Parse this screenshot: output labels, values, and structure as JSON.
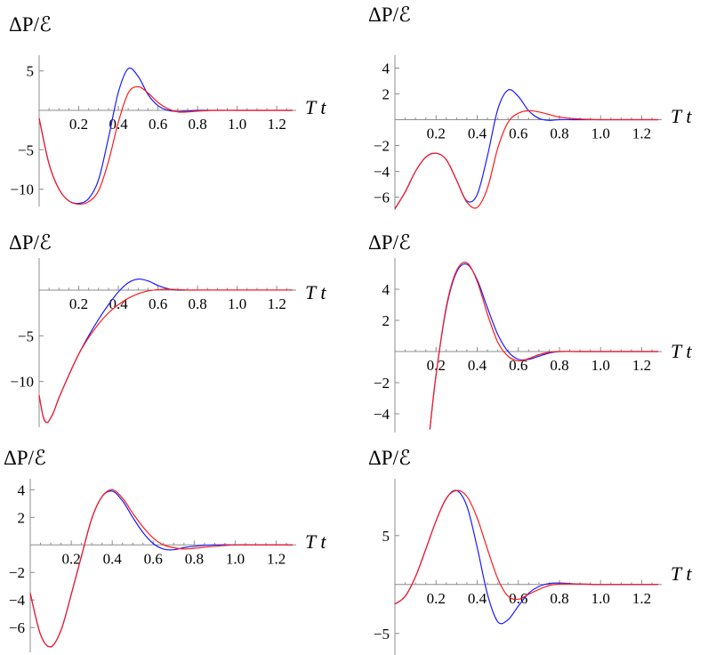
{
  "series_colors": {
    "blue": "#1a1aff",
    "red": "#ff1a1a"
  },
  "chart_data": [
    {
      "type": "line",
      "ylabel": "ΔP/ℰ",
      "xlabel": "T t",
      "xlim": [
        0,
        1.28
      ],
      "ylim": [
        -12.2,
        7
      ],
      "x_ticks": [
        "0.2",
        "0.4",
        "0.6",
        "0.8",
        "1.0",
        "1.2"
      ],
      "y_ticks": [
        "5",
        "−5",
        "−10"
      ],
      "series": [
        {
          "color": "#1a1aff",
          "x": [
            0,
            0.05,
            0.1,
            0.15,
            0.2,
            0.25,
            0.3,
            0.35,
            0.4,
            0.45,
            0.5,
            0.55,
            0.6,
            0.65,
            0.7,
            0.75,
            0.8,
            0.9,
            1.0,
            1.1,
            1.28
          ],
          "y": [
            -1.0,
            -6.8,
            -10.0,
            -11.5,
            -11.8,
            -11.2,
            -8.8,
            -3.5,
            2.3,
            5.3,
            4.3,
            2.0,
            0.6,
            0.0,
            -0.15,
            -0.1,
            0,
            0,
            0,
            0,
            0
          ]
        },
        {
          "color": "#ff1a1a",
          "x": [
            0,
            0.05,
            0.1,
            0.15,
            0.2,
            0.25,
            0.3,
            0.35,
            0.4,
            0.45,
            0.5,
            0.55,
            0.6,
            0.65,
            0.7,
            0.75,
            0.8,
            0.9,
            1.0,
            1.1,
            1.28
          ],
          "y": [
            -1.0,
            -6.8,
            -10.0,
            -11.5,
            -11.9,
            -11.6,
            -10.2,
            -6.5,
            -1.5,
            2.2,
            3.0,
            2.2,
            1.0,
            0.2,
            -0.2,
            -0.2,
            -0.1,
            0,
            0,
            0,
            0
          ]
        }
      ]
    },
    {
      "type": "line",
      "ylabel": "ΔP/ℰ",
      "xlabel": "T t",
      "xlim": [
        0,
        1.28
      ],
      "ylim": [
        -7.0,
        5.0
      ],
      "x_ticks": [
        "0.2",
        "0.4",
        "0.6",
        "0.8",
        "1.0",
        "1.2"
      ],
      "y_ticks": [
        "4",
        "2",
        "−2",
        "−4",
        "−6"
      ],
      "series": [
        {
          "color": "#1a1aff",
          "x": [
            0,
            0.05,
            0.1,
            0.15,
            0.2,
            0.25,
            0.3,
            0.35,
            0.4,
            0.45,
            0.5,
            0.55,
            0.6,
            0.65,
            0.7,
            0.75,
            0.8,
            0.9,
            1.0,
            1.1,
            1.28
          ],
          "y": [
            -6.9,
            -5.6,
            -4.0,
            -2.9,
            -2.6,
            -3.1,
            -4.7,
            -6.3,
            -5.8,
            -2.8,
            0.8,
            2.3,
            1.8,
            0.7,
            0.1,
            -0.05,
            0,
            0,
            0,
            0,
            0
          ]
        },
        {
          "color": "#ff1a1a",
          "x": [
            0,
            0.05,
            0.1,
            0.15,
            0.2,
            0.25,
            0.3,
            0.35,
            0.4,
            0.45,
            0.5,
            0.55,
            0.6,
            0.65,
            0.7,
            0.75,
            0.8,
            0.9,
            1.0,
            1.1,
            1.28
          ],
          "y": [
            -6.9,
            -5.6,
            -4.0,
            -2.9,
            -2.6,
            -3.1,
            -4.7,
            -6.4,
            -6.8,
            -5.3,
            -2.2,
            -0.2,
            0.5,
            0.7,
            0.6,
            0.4,
            0.2,
            0.05,
            0,
            0,
            0
          ]
        }
      ]
    },
    {
      "type": "line",
      "ylabel": "ΔP/ℰ",
      "xlabel": "T t",
      "xlim": [
        0,
        1.28
      ],
      "ylim": [
        -15.0,
        3.5
      ],
      "x_ticks": [
        "0.2",
        "0.4",
        "0.6",
        "0.8",
        "1.0",
        "1.2"
      ],
      "y_ticks": [
        "−5",
        "−10"
      ],
      "series": [
        {
          "color": "#1a1aff",
          "x": [
            0,
            0.02,
            0.04,
            0.07,
            0.1,
            0.15,
            0.2,
            0.25,
            0.3,
            0.35,
            0.4,
            0.45,
            0.5,
            0.55,
            0.6,
            0.65,
            0.7,
            0.75,
            0.8,
            0.9,
            1.0,
            1.1,
            1.28
          ],
          "y": [
            -11.5,
            -13.8,
            -14.5,
            -13.5,
            -11.8,
            -9.3,
            -7.0,
            -5.0,
            -3.2,
            -1.6,
            -0.2,
            0.8,
            1.2,
            1.0,
            0.5,
            0.15,
            0,
            0,
            0,
            0,
            0,
            0,
            0
          ]
        },
        {
          "color": "#ff1a1a",
          "x": [
            0,
            0.02,
            0.04,
            0.07,
            0.1,
            0.15,
            0.2,
            0.25,
            0.3,
            0.35,
            0.4,
            0.45,
            0.5,
            0.55,
            0.6,
            0.65,
            0.7,
            0.75,
            0.8,
            0.9,
            1.0,
            1.1,
            1.28
          ],
          "y": [
            -11.5,
            -13.8,
            -14.5,
            -13.5,
            -11.8,
            -9.3,
            -7.0,
            -5.2,
            -3.7,
            -2.5,
            -1.6,
            -0.9,
            -0.4,
            -0.1,
            0.05,
            0.1,
            0.05,
            0,
            0,
            0,
            0,
            0,
            0
          ]
        }
      ]
    },
    {
      "type": "line",
      "ylabel": "ΔP/ℰ",
      "xlabel": "T t",
      "xlim": [
        0,
        1.28
      ],
      "ylim": [
        -5.2,
        6.0
      ],
      "x_ticks": [
        "0.2",
        "0.4",
        "0.6",
        "0.8",
        "1.0",
        "1.2"
      ],
      "y_ticks": [
        "4",
        "2",
        "−2",
        "−4"
      ],
      "series": [
        {
          "color": "#1a1aff",
          "x": [
            0.17,
            0.2,
            0.25,
            0.3,
            0.35,
            0.4,
            0.45,
            0.5,
            0.55,
            0.6,
            0.65,
            0.7,
            0.75,
            0.8,
            0.9,
            1.0,
            1.1,
            1.28
          ],
          "y": [
            -5.0,
            -1.5,
            2.8,
            5.1,
            5.6,
            4.6,
            2.8,
            1.1,
            0.0,
            -0.5,
            -0.5,
            -0.3,
            -0.1,
            0,
            0,
            0,
            0,
            0
          ]
        },
        {
          "color": "#ff1a1a",
          "x": [
            0.17,
            0.2,
            0.25,
            0.3,
            0.35,
            0.4,
            0.45,
            0.5,
            0.55,
            0.6,
            0.65,
            0.7,
            0.75,
            0.8,
            0.9,
            1.0,
            1.1,
            1.28
          ],
          "y": [
            -5.0,
            -1.5,
            2.9,
            5.2,
            5.7,
            4.5,
            2.4,
            0.6,
            -0.3,
            -0.6,
            -0.45,
            -0.2,
            -0.05,
            0,
            0,
            0,
            0,
            0
          ]
        }
      ]
    },
    {
      "type": "line",
      "ylabel": "ΔP/ℰ",
      "xlabel": "T t",
      "xlim": [
        0,
        1.28
      ],
      "ylim": [
        -7.8,
        4.8
      ],
      "x_ticks": [
        "0.2",
        "0.4",
        "0.6",
        "0.8",
        "1.0",
        "1.2"
      ],
      "y_ticks": [
        "4",
        "2",
        "−2",
        "−4",
        "−6"
      ],
      "series": [
        {
          "color": "#1a1aff",
          "x": [
            0,
            0.05,
            0.1,
            0.15,
            0.2,
            0.25,
            0.3,
            0.35,
            0.4,
            0.45,
            0.5,
            0.55,
            0.6,
            0.65,
            0.7,
            0.75,
            0.8,
            0.9,
            1.0,
            1.1,
            1.28
          ],
          "y": [
            -3.5,
            -6.5,
            -7.4,
            -6.2,
            -3.6,
            -0.8,
            1.9,
            3.5,
            3.9,
            3.2,
            2.0,
            0.9,
            0.1,
            -0.3,
            -0.35,
            -0.2,
            -0.1,
            0,
            0,
            0,
            0
          ]
        },
        {
          "color": "#ff1a1a",
          "x": [
            0,
            0.05,
            0.1,
            0.15,
            0.2,
            0.25,
            0.3,
            0.35,
            0.4,
            0.45,
            0.5,
            0.55,
            0.6,
            0.65,
            0.7,
            0.75,
            0.8,
            0.9,
            1.0,
            1.1,
            1.28
          ],
          "y": [
            -3.5,
            -6.5,
            -7.4,
            -6.2,
            -3.6,
            -0.8,
            1.9,
            3.5,
            4.0,
            3.4,
            2.3,
            1.3,
            0.5,
            0.0,
            -0.2,
            -0.3,
            -0.25,
            -0.1,
            0,
            0,
            0
          ]
        }
      ]
    },
    {
      "type": "line",
      "ylabel": "ΔP/ℰ",
      "xlabel": "T t",
      "xlim": [
        0,
        1.28
      ],
      "ylim": [
        -7.2,
        10.8
      ],
      "x_ticks": [
        "0.2",
        "0.4",
        "0.6",
        "0.8",
        "1.0",
        "1.2"
      ],
      "y_ticks": [
        "5",
        "−5"
      ],
      "series": [
        {
          "color": "#1a1aff",
          "x": [
            0,
            0.05,
            0.1,
            0.15,
            0.2,
            0.25,
            0.3,
            0.35,
            0.4,
            0.45,
            0.5,
            0.55,
            0.6,
            0.65,
            0.7,
            0.75,
            0.8,
            0.9,
            1.0,
            1.1,
            1.28
          ],
          "y": [
            -2.0,
            -1.2,
            0.8,
            3.6,
            6.5,
            8.8,
            9.6,
            8.0,
            3.8,
            -1.0,
            -3.8,
            -3.6,
            -2.2,
            -0.9,
            -0.2,
            0.1,
            0.15,
            0.05,
            0,
            0,
            0
          ]
        },
        {
          "color": "#ff1a1a",
          "x": [
            0,
            0.05,
            0.1,
            0.15,
            0.2,
            0.25,
            0.3,
            0.35,
            0.4,
            0.45,
            0.5,
            0.55,
            0.6,
            0.65,
            0.7,
            0.75,
            0.8,
            0.9,
            1.0,
            1.1,
            1.28
          ],
          "y": [
            -2.0,
            -1.2,
            0.8,
            3.6,
            6.5,
            8.8,
            9.6,
            9.0,
            6.8,
            3.6,
            0.6,
            -1.2,
            -1.5,
            -1.0,
            -0.5,
            -0.1,
            0.05,
            0.05,
            0,
            0,
            0
          ]
        }
      ]
    }
  ]
}
